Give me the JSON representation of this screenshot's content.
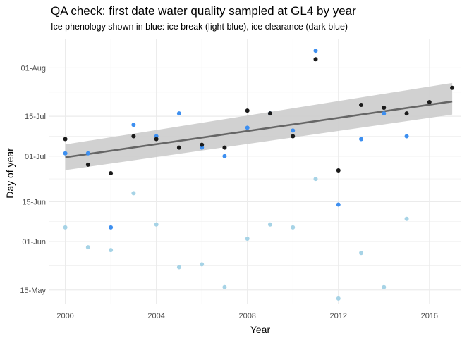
{
  "chart_data": {
    "type": "scatter",
    "title": "QA check: first date water quality sampled at GL4 by year",
    "subtitle": "Ice phenology shown in blue: ice break (light blue), ice clearance (dark blue)",
    "xlabel": "Year",
    "ylabel": "Day of year",
    "xlim": [
      1999.3,
      2017.4
    ],
    "ylim": [
      130,
      223
    ],
    "x_ticks": [
      2000,
      2004,
      2008,
      2012,
      2016
    ],
    "x_tick_labels": [
      "2000",
      "2004",
      "2008",
      "2012",
      "2016"
    ],
    "y_ticks": [
      135,
      152,
      166,
      182,
      196,
      213
    ],
    "y_tick_labels": [
      "15-May",
      "01-Jun",
      "15-Jun",
      "01-Jul",
      "15-Jul",
      "01-Aug"
    ],
    "grid": true,
    "legend": "none",
    "colors": {
      "sampled": "#1a1a1a",
      "ice_break": "#a6d3e6",
      "ice_clearance": "#3d8ff0",
      "trend": "#666666",
      "confidence_band": "#cccccc",
      "grid": "#ebebeb"
    },
    "series": [
      {
        "x": [
          2000,
          2001,
          2002,
          2003,
          2004,
          2005,
          2006,
          2007,
          2008,
          2009,
          2010,
          2011,
          2012,
          2013,
          2014,
          2015,
          2016,
          2017
        ],
        "y": [
          188,
          179,
          176,
          189,
          188,
          185,
          186,
          185,
          198,
          197,
          189,
          216,
          177,
          200,
          199,
          197,
          201,
          206
        ]
      },
      {
        "x": [
          2000,
          2001,
          2002,
          2003,
          2004,
          2005,
          2006,
          2007,
          2008,
          2009,
          2010,
          2011,
          2012,
          2013,
          2014,
          2015
        ],
        "y": [
          157,
          150,
          149,
          169,
          158,
          143,
          144,
          136,
          153,
          158,
          157,
          174,
          132,
          148,
          136,
          160
        ]
      },
      {
        "x": [
          2000,
          2001,
          2002,
          2003,
          2004,
          2005,
          2006,
          2007,
          2008,
          2009,
          2010,
          2011,
          2012,
          2013,
          2014,
          2015
        ],
        "y": [
          183,
          183,
          157,
          193,
          189,
          197,
          185,
          182,
          192,
          197,
          191,
          219,
          165,
          188,
          197,
          189
        ]
      }
    ],
    "trend_line": {
      "x": [
        2000,
        2017
      ],
      "y": [
        181.6,
        201.2
      ],
      "band_lower": [
        177.1,
        196.6
      ],
      "band_upper": [
        186.1,
        207.7
      ]
    }
  }
}
